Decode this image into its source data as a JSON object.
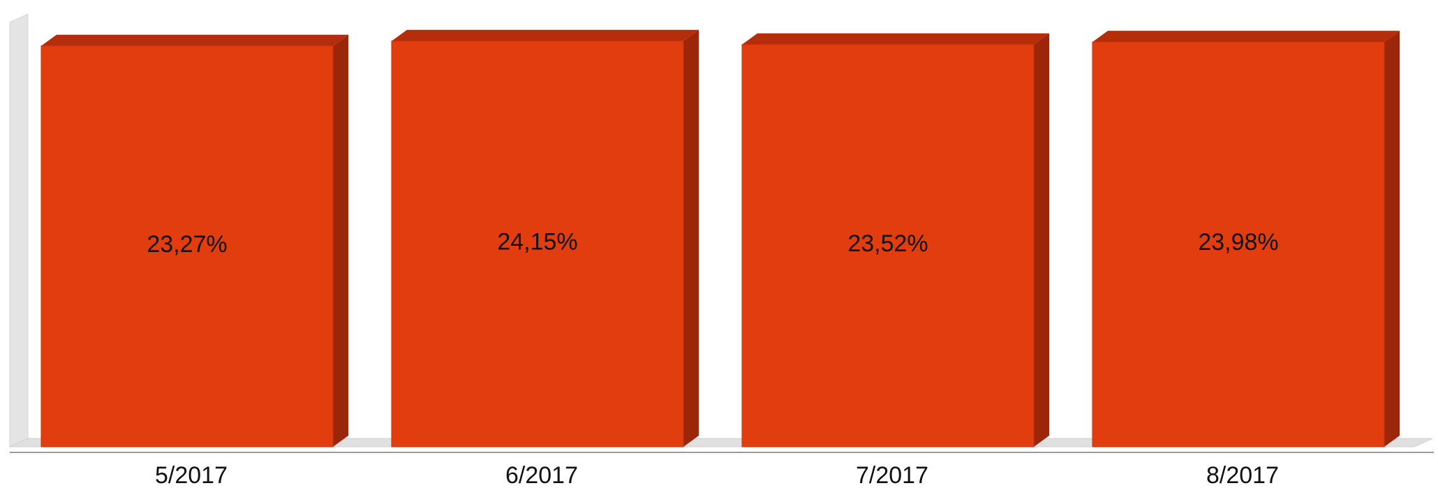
{
  "chart_data": {
    "type": "bar",
    "style": "3d",
    "categories": [
      "5/2017",
      "6/2017",
      "7/2017",
      "8/2017"
    ],
    "values": [
      23.27,
      24.15,
      23.52,
      23.98
    ],
    "data_labels": [
      "23,27%",
      "24,15%",
      "23,52%",
      "23,98%"
    ],
    "value_unit": "%",
    "title": "",
    "xlabel": "",
    "ylabel": "",
    "grid": false,
    "legend": "none",
    "colors": {
      "bar_front": "#E23D0E",
      "bar_top": "#B52E0B",
      "bar_side": "#9B260A",
      "wall": "#E4E4E4",
      "floor": "#E0E0E0"
    }
  }
}
